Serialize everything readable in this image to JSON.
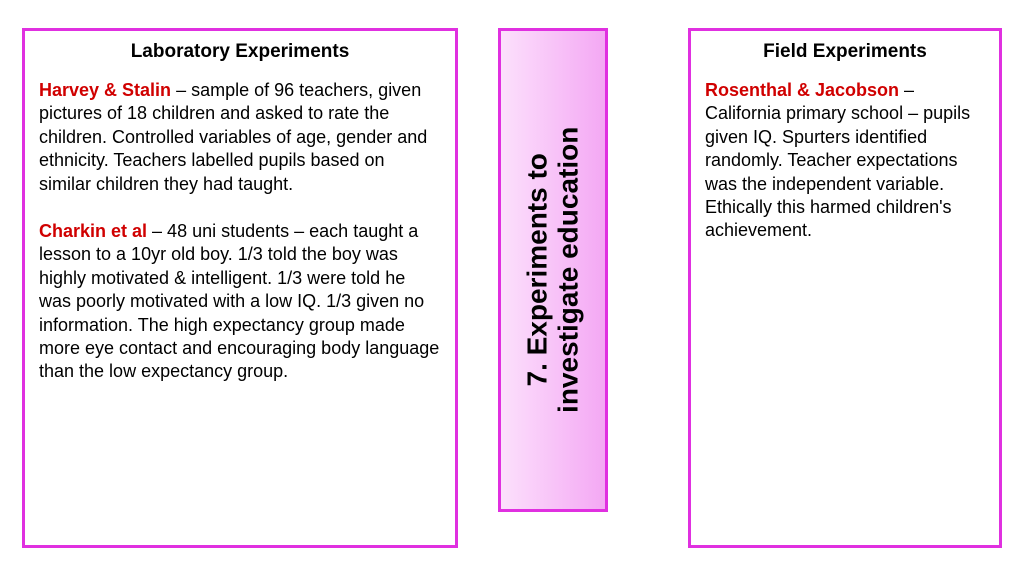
{
  "left": {
    "title": "Laboratory Experiments",
    "entries": [
      {
        "author": "Harvey & Stalin",
        "body": " – sample of 96 teachers, given pictures of 18 children and asked to rate the children. Controlled variables of age, gender and ethnicity. Teachers labelled pupils based on similar children they had taught."
      },
      {
        "author": "Charkin et al",
        "body": " – 48 uni students – each taught a lesson to a 10yr old boy.  1/3 told the boy was highly motivated & intelligent. 1/3 were told he was poorly motivated with a low IQ. 1/3 given no information. The high expectancy group made more eye contact and encouraging body language than the low expectancy group."
      }
    ]
  },
  "center": {
    "line1": "7. Experiments to",
    "line2": "investigate education"
  },
  "right": {
    "title": "Field Experiments",
    "entries": [
      {
        "author": "Rosenthal & Jacobson",
        "body": " – California primary school – pupils given IQ. Spurters identified randomly. Teacher expectations was the independent variable. Ethically this harmed children's achievement."
      }
    ]
  },
  "colors": {
    "border": "#e030e0",
    "author": "#d00000",
    "text": "#000000",
    "bg": "#ffffff",
    "center_grad_start": "#fce0fc",
    "center_grad_end": "#f4a8f4"
  }
}
